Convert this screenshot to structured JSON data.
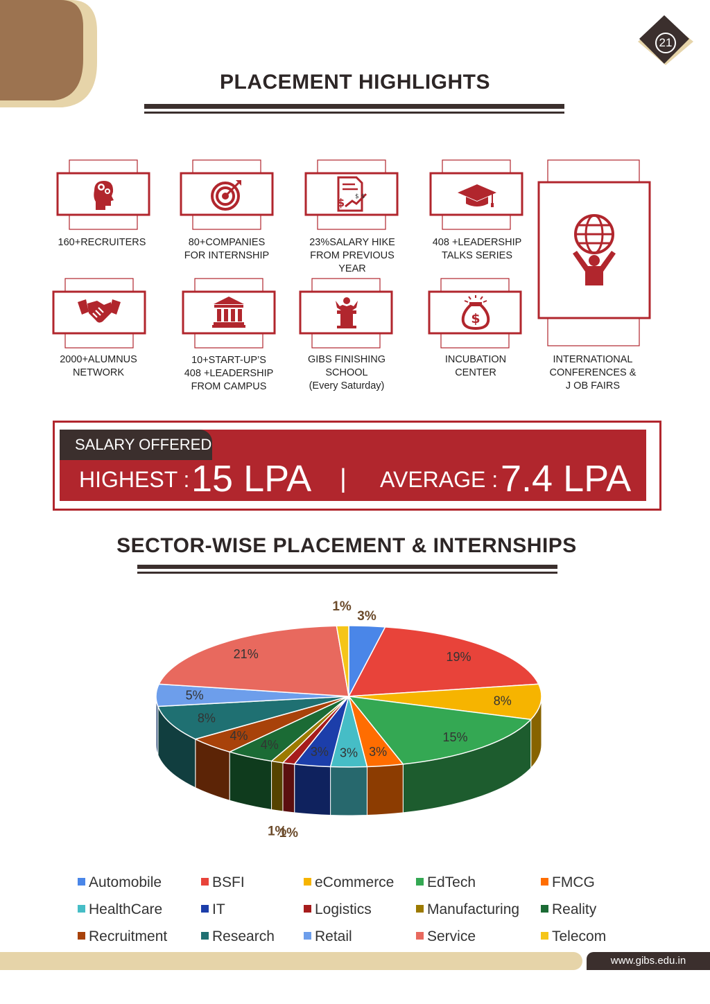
{
  "page_number": "21",
  "title": "PLACEMENT HIGHLIGHTS",
  "features": [
    {
      "lines": [
        "160+RECRUITERS"
      ],
      "icon": "head-gears-icon"
    },
    {
      "lines": [
        "80+COMPANIES",
        "FOR INTERNSHIP"
      ],
      "icon": "target-icon"
    },
    {
      "lines": [
        "23%SALARY HIKE",
        "FROM PREVIOUS",
        "YEAR"
      ],
      "icon": "salary-document-icon"
    },
    {
      "lines": [
        "408 +LEADERSHIP",
        "TALKS SERIES"
      ],
      "icon": "graduation-cap-icon"
    },
    {
      "lines": [
        "2000+ALUMNUS",
        "NETWORK"
      ],
      "icon": "handshake-icon"
    },
    {
      "lines": [
        "10+START-UP’S",
        "408 +LEADERSHIP",
        "FROM CAMPUS"
      ],
      "icon": "bank-building-icon"
    },
    {
      "lines": [
        "GIBS FINISHING",
        "SCHOOL",
        "(Every Saturday)"
      ],
      "icon": "speaker-podium-icon"
    },
    {
      "lines": [
        "INCUBATION",
        "CENTER"
      ],
      "icon": "money-bag-icon"
    },
    {
      "lines": [
        "INTERNATIONAL",
        "CONFERENCES &",
        "J OB FAIRS"
      ],
      "icon": "globe-person-icon"
    }
  ],
  "salary": {
    "tab_label": "SALARY OFFERED",
    "highest_label": "HIGHEST :",
    "highest_value": "15 LPA",
    "separator": "|",
    "average_label": "AVERAGE :",
    "average_value": "7.4 LPA"
  },
  "sector_title": "SECTOR-WISE PLACEMENT & INTERNSHIPS",
  "chart_data": {
    "type": "pie",
    "title": "",
    "slices": [
      {
        "label": "Automobile",
        "value": 3,
        "color": "#4a86e8"
      },
      {
        "label": "BSFI",
        "value": 19,
        "color": "#e8433a"
      },
      {
        "label": "eCommerce",
        "value": 8,
        "color": "#f6b400"
      },
      {
        "label": "EdTech",
        "value": 15,
        "color": "#34a853"
      },
      {
        "label": "FMCG",
        "value": 3,
        "color": "#ff6d01"
      },
      {
        "label": "HealthCare",
        "value": 3,
        "color": "#46bdc6"
      },
      {
        "label": "IT",
        "value": 3,
        "color": "#1c3eaa"
      },
      {
        "label": "Logistics",
        "value": 1,
        "color": "#a61c1c"
      },
      {
        "label": "Manufacturing",
        "value": 1,
        "color": "#9c7a00"
      },
      {
        "label": "Reality",
        "value": 4,
        "color": "#1b6b35"
      },
      {
        "label": "Recruitment",
        "value": 4,
        "color": "#a8420a"
      },
      {
        "label": "Research",
        "value": 8,
        "color": "#1f7072"
      },
      {
        "label": "Retail",
        "value": 5,
        "color": "#6d9eeb"
      },
      {
        "label": "Service",
        "value": 21,
        "color": "#e8695e"
      },
      {
        "label": "Telecom",
        "value": 1,
        "color": "#f5c518"
      }
    ],
    "labels_shown": [
      "1%",
      "3%",
      "19%",
      "8%",
      "15%",
      "3%",
      "3%",
      "3%",
      "1%",
      "1%",
      "4%",
      "4%",
      "8%",
      "5%",
      "21%"
    ],
    "legend_position": "bottom"
  },
  "footer_url": "www.gibs.edu.in"
}
